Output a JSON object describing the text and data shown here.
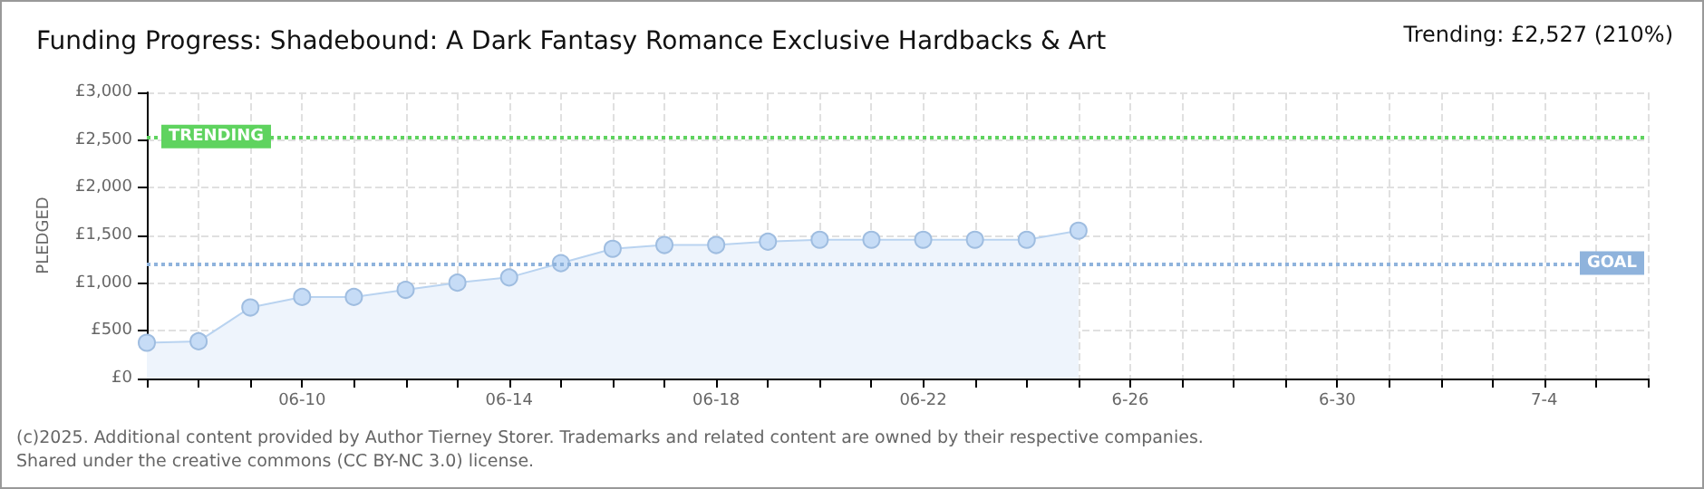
{
  "chart_data": {
    "type": "area",
    "title": "Funding Progress: Shadebound: A Dark Fantasy Romance Exclusive Hardbacks & Art",
    "ylabel": "PLEDGED",
    "annotations": [
      "Trending: £2,527 (210%)",
      "(c)2025. Additional content provided by Author Tierney Storer. Trademarks and related content are owned by their respective companies.",
      "Shared under the creative commons (CC BY-NC 3.0) license."
    ],
    "categories": [
      null,
      null,
      null,
      "06-10",
      null,
      null,
      null,
      "06-14",
      null,
      null,
      null,
      "06-18",
      null,
      null,
      null,
      "06-22",
      null,
      null,
      null,
      "6-26",
      null,
      null,
      null,
      "6-30",
      null,
      null,
      null,
      "7-4",
      null,
      null
    ],
    "series": [
      {
        "color": "#b9d3f0",
        "values": [
          375,
          390,
          745,
          855,
          855,
          930,
          1005,
          1060,
          1210,
          1360,
          1400,
          1400,
          1435,
          1455,
          1455,
          1455,
          1455,
          1455,
          1550,
          null,
          null,
          null,
          null,
          null,
          null,
          null,
          null,
          null,
          null,
          null
        ]
      }
    ],
    "ylim": [
      0,
      3000
    ],
    "yticks": [
      {
        "value": 0,
        "label": "£0"
      },
      {
        "value": 500,
        "label": "£500"
      },
      {
        "value": 1000,
        "label": "£1,000"
      },
      {
        "value": 1500,
        "label": "£1,500"
      },
      {
        "value": 2000,
        "label": "£2,000"
      },
      {
        "value": 2500,
        "label": "£2,500"
      },
      {
        "value": 3000,
        "label": "£3,000"
      }
    ],
    "ref_lines": [
      {
        "axis": "y",
        "value": 2527,
        "label": "TRENDING",
        "color": "#5fd35f",
        "line_style": "dotted"
      },
      {
        "axis": "y",
        "value": 1200,
        "label": "GOAL",
        "color": "#8fb3dc",
        "line_style": "dotted"
      }
    ],
    "grid": true,
    "marker": "circle"
  }
}
